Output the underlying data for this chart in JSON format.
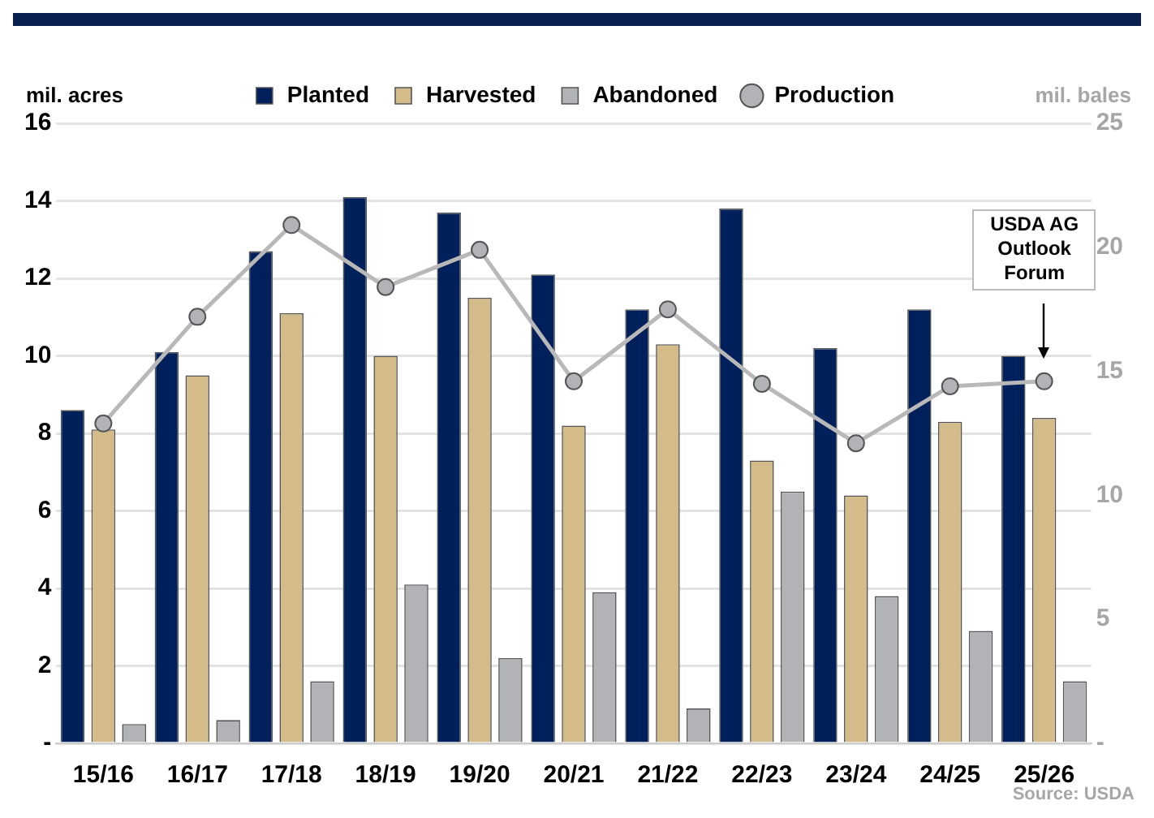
{
  "chart_data": {
    "type": "bar",
    "ylabel": "mil. acres",
    "y2label": "mil. bales",
    "categories": [
      "15/16",
      "16/17",
      "17/18",
      "18/19",
      "19/20",
      "20/21",
      "21/22",
      "22/23",
      "23/24",
      "24/25",
      "25/26"
    ],
    "series": [
      {
        "name": "Planted",
        "color": "#00205b",
        "values": [
          8.6,
          10.1,
          12.7,
          14.1,
          13.7,
          12.1,
          11.2,
          13.8,
          10.2,
          11.2,
          10.0
        ]
      },
      {
        "name": "Harvested",
        "color": "#d4bb8a",
        "values": [
          8.1,
          9.5,
          11.1,
          10.0,
          11.5,
          8.2,
          10.3,
          7.3,
          6.4,
          8.3,
          8.4
        ]
      },
      {
        "name": "Abandoned",
        "color": "#b1b3b6",
        "values": [
          0.5,
          0.6,
          1.6,
          4.1,
          2.2,
          3.9,
          0.9,
          6.5,
          3.8,
          2.9,
          1.6
        ]
      },
      {
        "name": "Production",
        "type": "line",
        "axis": "y2",
        "color": "#b8b8b8",
        "marker": "circle",
        "values": [
          12.9,
          17.2,
          20.9,
          18.4,
          19.9,
          14.6,
          17.5,
          14.5,
          12.1,
          14.4,
          14.6
        ]
      }
    ],
    "ylim": [
      0,
      16
    ],
    "yticks": [
      {
        "value": 0,
        "label": "-"
      },
      2,
      4,
      6,
      8,
      10,
      12,
      14,
      16
    ],
    "y2lim": [
      0,
      25
    ],
    "y2ticks": [
      {
        "value": 0,
        "label": "-"
      },
      5,
      10,
      15,
      20,
      25
    ],
    "grid": "y",
    "legend": "top",
    "annotations": [
      {
        "text": "USDA AG Outlook Forum",
        "x": "25/26"
      },
      "Source: USDA"
    ]
  }
}
